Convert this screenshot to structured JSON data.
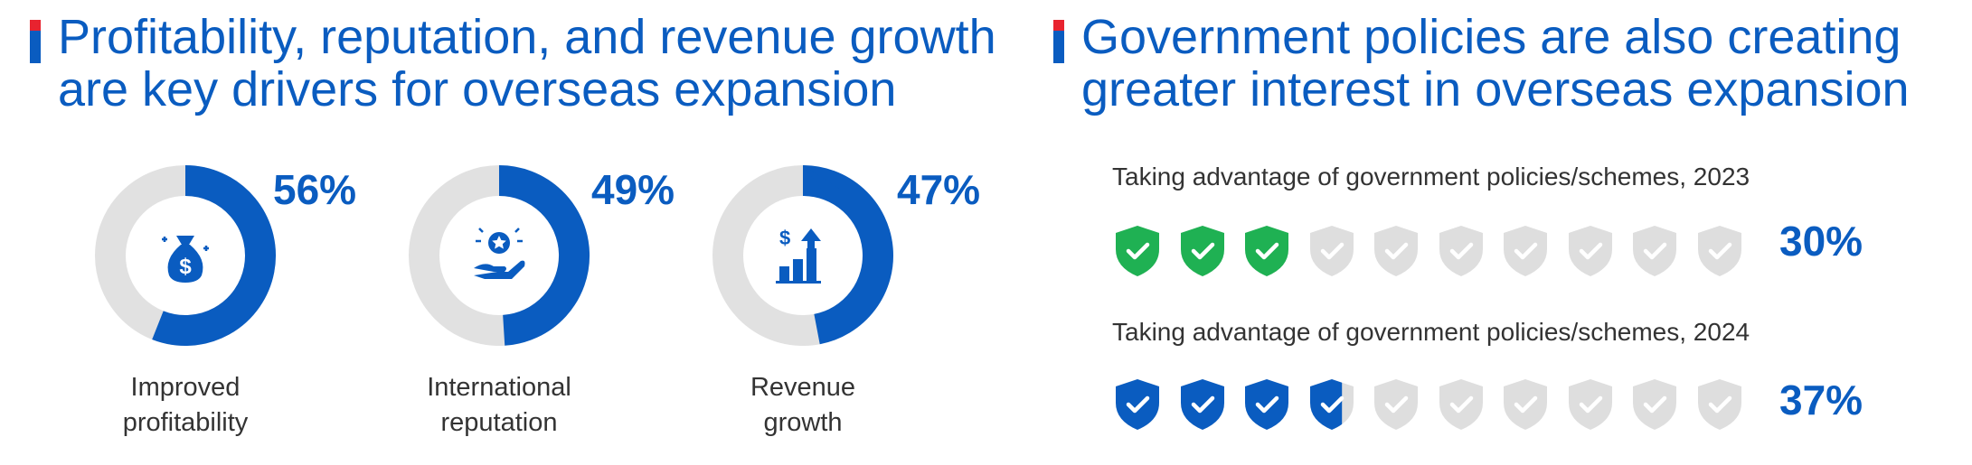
{
  "left_section": {
    "title_line1": "Profitability, reputation, and revenue growth",
    "title_line2": "are key drivers for overseas expansion"
  },
  "right_section": {
    "title_line1": "Government policies are also creating",
    "title_line2": "greater interest in overseas expansion"
  },
  "colors": {
    "primary_blue": "#0a5cc0",
    "ring_gray": "#e1e1e1",
    "green": "#1fb153",
    "shield_gray": "#dedede",
    "accent_red": "#e8232f"
  },
  "chart_data": [
    {
      "type": "pie",
      "variant": "donut",
      "categories": [
        "Improved profitability",
        "International reputation",
        "Revenue growth"
      ],
      "values": [
        56,
        49,
        47
      ],
      "labels": [
        "56%",
        "49%",
        "47%"
      ],
      "caption_lines": [
        [
          "Improved",
          "profitability"
        ],
        [
          "International",
          "reputation"
        ],
        [
          "Revenue",
          "growth"
        ]
      ],
      "icons": [
        "money-bag-icon",
        "hand-star-icon",
        "growth-chart-icon"
      ],
      "unit": "%"
    },
    {
      "type": "bar",
      "variant": "pictograph",
      "shields_total": 10,
      "series": [
        {
          "name": "Taking advantage of government policies/schemes, 2023",
          "value": 30,
          "label": "30%",
          "fill_color": "#1fb153"
        },
        {
          "name": "Taking advantage of government policies/schemes, 2024",
          "value": 37,
          "label": "37%",
          "fill_color": "#0a5cc0"
        }
      ],
      "unit": "%"
    }
  ]
}
